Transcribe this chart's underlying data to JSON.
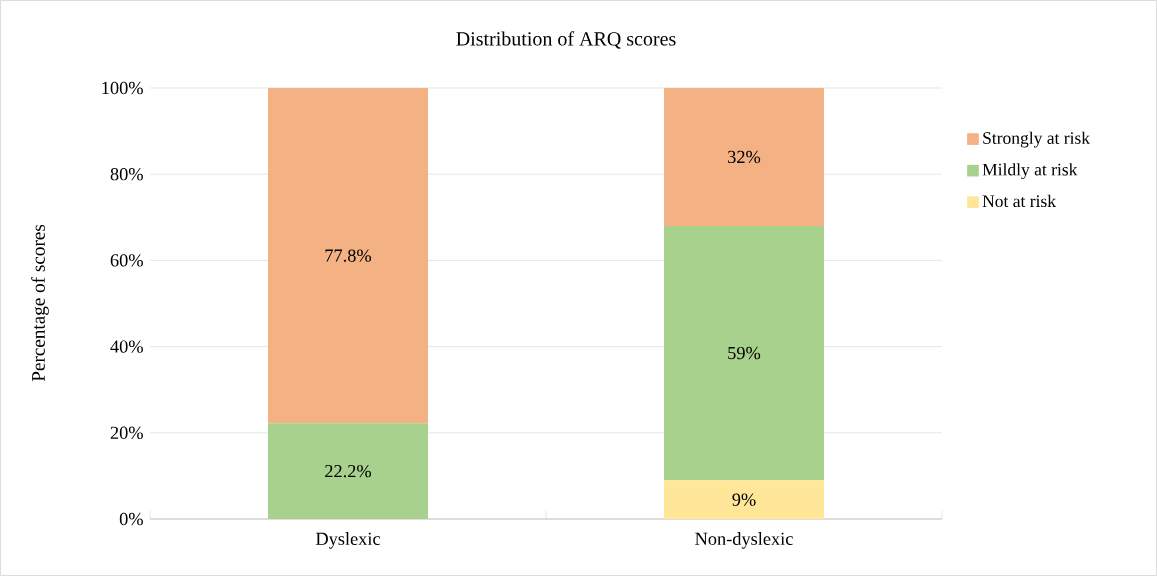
{
  "chart_data": {
    "type": "bar",
    "title": "Distribution of ARQ scores",
    "ylabel": "Percentage of scores",
    "categories": [
      "Dyslexic",
      "Non-dyslexic"
    ],
    "stacked": true,
    "series": [
      {
        "name": "Not at risk",
        "color": "#ffe699",
        "values": [
          0,
          9
        ],
        "value_labels": [
          null,
          "9%"
        ]
      },
      {
        "name": "Mildly at risk",
        "color": "#a9d18e",
        "values": [
          22.2,
          59
        ],
        "value_labels": [
          "22.2%",
          "59%"
        ]
      },
      {
        "name": "Strongly at risk",
        "color": "#f4b183",
        "values": [
          77.8,
          32
        ],
        "value_labels": [
          "77.8%",
          "32%"
        ]
      }
    ],
    "ylim": [
      0,
      100
    ],
    "yticks": [
      {
        "value": 0,
        "label": "0%"
      },
      {
        "value": 20,
        "label": "20%"
      },
      {
        "value": 40,
        "label": "40%"
      },
      {
        "value": 60,
        "label": "60%"
      },
      {
        "value": 80,
        "label": "80%"
      },
      {
        "value": 100,
        "label": "100%"
      }
    ],
    "grid": "y",
    "legend": "right"
  }
}
